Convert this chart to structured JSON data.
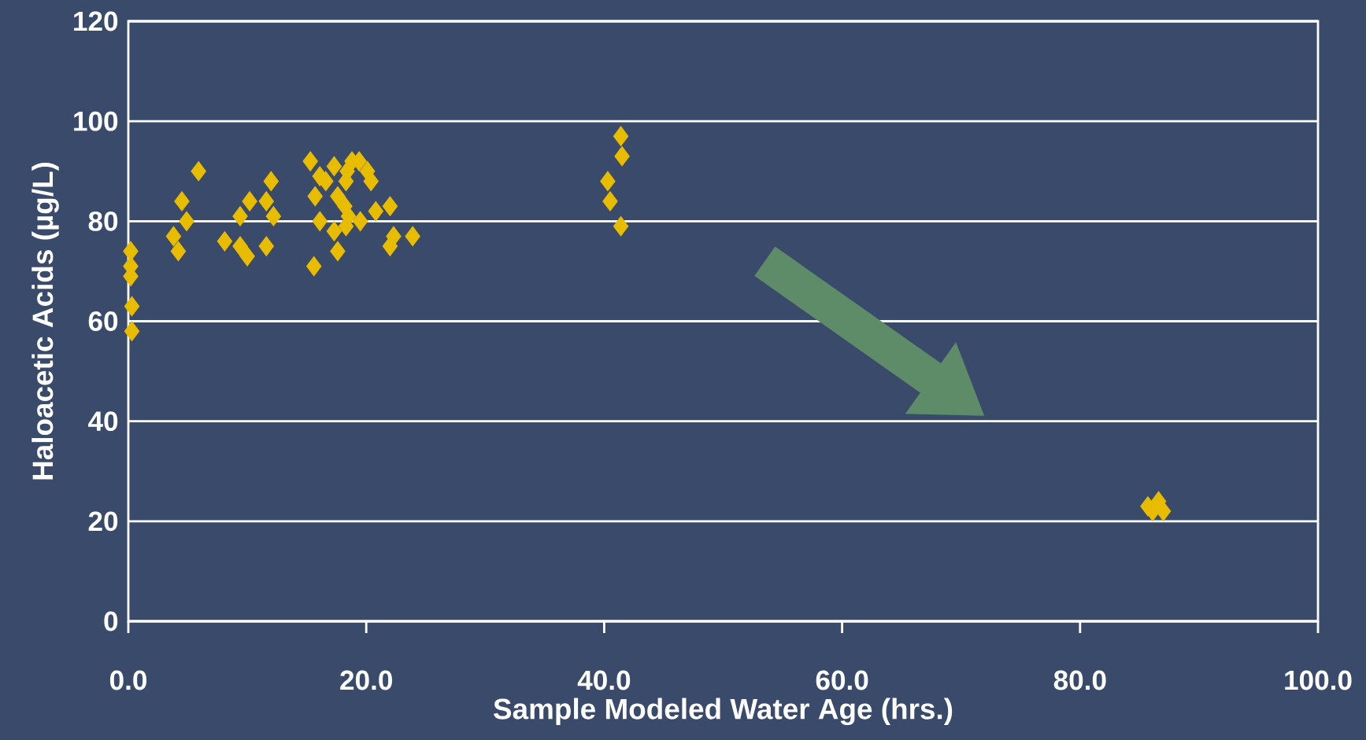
{
  "chart_data": {
    "type": "scatter",
    "xlabel": "Sample Modeled Water Age (hrs.)",
    "ylabel": "Haloacetic Acids (µg/L)",
    "x": [
      0.2,
      0.2,
      0.2,
      0.3,
      0.3,
      3.8,
      4.2,
      4.5,
      4.9,
      5.9,
      8.1,
      9.4,
      9.4,
      10,
      10.2,
      11.6,
      11.6,
      12,
      12.2,
      15.3,
      15.7,
      15.6,
      16.1,
      16.1,
      16.6,
      17.3,
      17.6,
      17.6,
      17.3,
      18.2,
      18.3,
      18.4,
      18.8,
      19.4,
      19.5,
      20.1,
      20.4,
      20.8,
      22,
      22.3,
      22,
      23.9,
      18.3,
      18.5,
      40.3,
      40.5,
      41.4,
      41.5,
      41.4,
      85.7,
      86.6,
      87,
      86.1
    ],
    "values": [
      74,
      71,
      69,
      63,
      58,
      77,
      74,
      84,
      80,
      90,
      76,
      81,
      75,
      73,
      84,
      84,
      75,
      88,
      81,
      92,
      85,
      71,
      80,
      89,
      88,
      91,
      85,
      74,
      78,
      83,
      88,
      90,
      92,
      92,
      80,
      90,
      88,
      82,
      83,
      77,
      75,
      77,
      79,
      81,
      88,
      84,
      97,
      93,
      79,
      23,
      24,
      22,
      22
    ],
    "color": "#e8bc00",
    "marker": "diamond",
    "xlim": [
      0,
      100
    ],
    "ylim": [
      0,
      120
    ],
    "xticks": [
      {
        "value": 0,
        "label": "0.0"
      },
      {
        "value": 20,
        "label": "20.0"
      },
      {
        "value": 40,
        "label": "40.0"
      },
      {
        "value": 60,
        "label": "60.0"
      },
      {
        "value": 80,
        "label": "80.0"
      },
      {
        "value": 100,
        "label": "100.0"
      }
    ],
    "yticks": [
      0,
      20,
      40,
      60,
      80,
      100,
      120
    ],
    "grid": "y"
  }
}
